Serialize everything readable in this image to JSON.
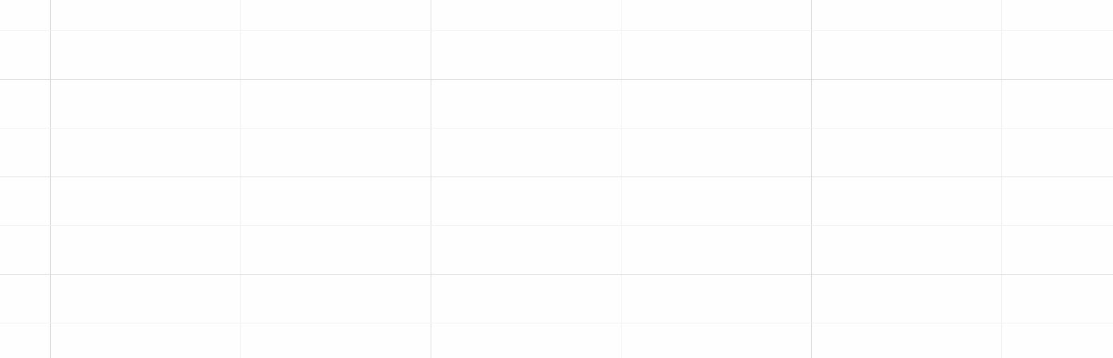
{
  "grid": {
    "colors": {
      "background": "#fefefe",
      "major_vertical": "#d9d9d9",
      "major_horizontal": "#dedede",
      "minor_vertical": "#efefef",
      "minor_horizontal": "#f1f1f1"
    }
  }
}
